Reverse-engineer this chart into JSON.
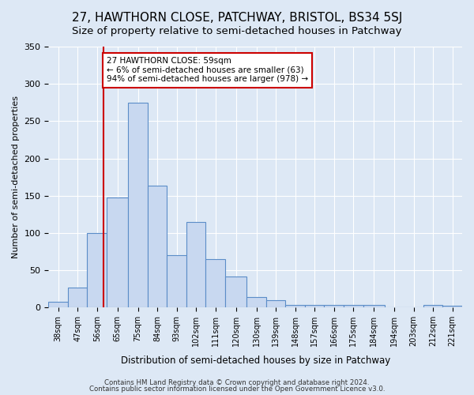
{
  "title": "27, HAWTHORN CLOSE, PATCHWAY, BRISTOL, BS34 5SJ",
  "subtitle": "Size of property relative to semi-detached houses in Patchway",
  "xlabel": "Distribution of semi-detached houses by size in Patchway",
  "ylabel": "Number of semi-detached properties",
  "bar_labels": [
    "38sqm",
    "47sqm",
    "56sqm",
    "65sqm",
    "75sqm",
    "84sqm",
    "93sqm",
    "102sqm",
    "111sqm",
    "120sqm",
    "130sqm",
    "139sqm",
    "148sqm",
    "157sqm",
    "166sqm",
    "175sqm",
    "184sqm",
    "194sqm",
    "203sqm",
    "212sqm",
    "221sqm"
  ],
  "bar_values": [
    8,
    27,
    100,
    148,
    275,
    163,
    70,
    115,
    65,
    42,
    14,
    10,
    4,
    3,
    3,
    4,
    3,
    0,
    0,
    3,
    2
  ],
  "bar_edges": [
    33.5,
    42.5,
    51.5,
    60.5,
    70.5,
    79.5,
    88.5,
    97.5,
    106.5,
    115.5,
    125.5,
    134.5,
    143.5,
    152.5,
    161.5,
    170.5,
    179.5,
    189.5,
    198.5,
    207.5,
    216.5,
    225.5
  ],
  "bar_color": "#c8d8f0",
  "bar_edgecolor": "#5b8dc8",
  "vline_x": 59,
  "vline_color": "#cc0000",
  "ylim": [
    0,
    350
  ],
  "yticks": [
    0,
    50,
    100,
    150,
    200,
    250,
    300,
    350
  ],
  "annotation_title": "27 HAWTHORN CLOSE: 59sqm",
  "annotation_line1": "← 6% of semi-detached houses are smaller (63)",
  "annotation_line2": "94% of semi-detached houses are larger (978) →",
  "annotation_box_facecolor": "#ffffff",
  "annotation_box_edgecolor": "#cc0000",
  "footer1": "Contains HM Land Registry data © Crown copyright and database right 2024.",
  "footer2": "Contains public sector information licensed under the Open Government Licence v3.0.",
  "background_color": "#dde8f5",
  "plot_background_color": "#dde8f5",
  "title_fontsize": 11,
  "subtitle_fontsize": 9.5
}
